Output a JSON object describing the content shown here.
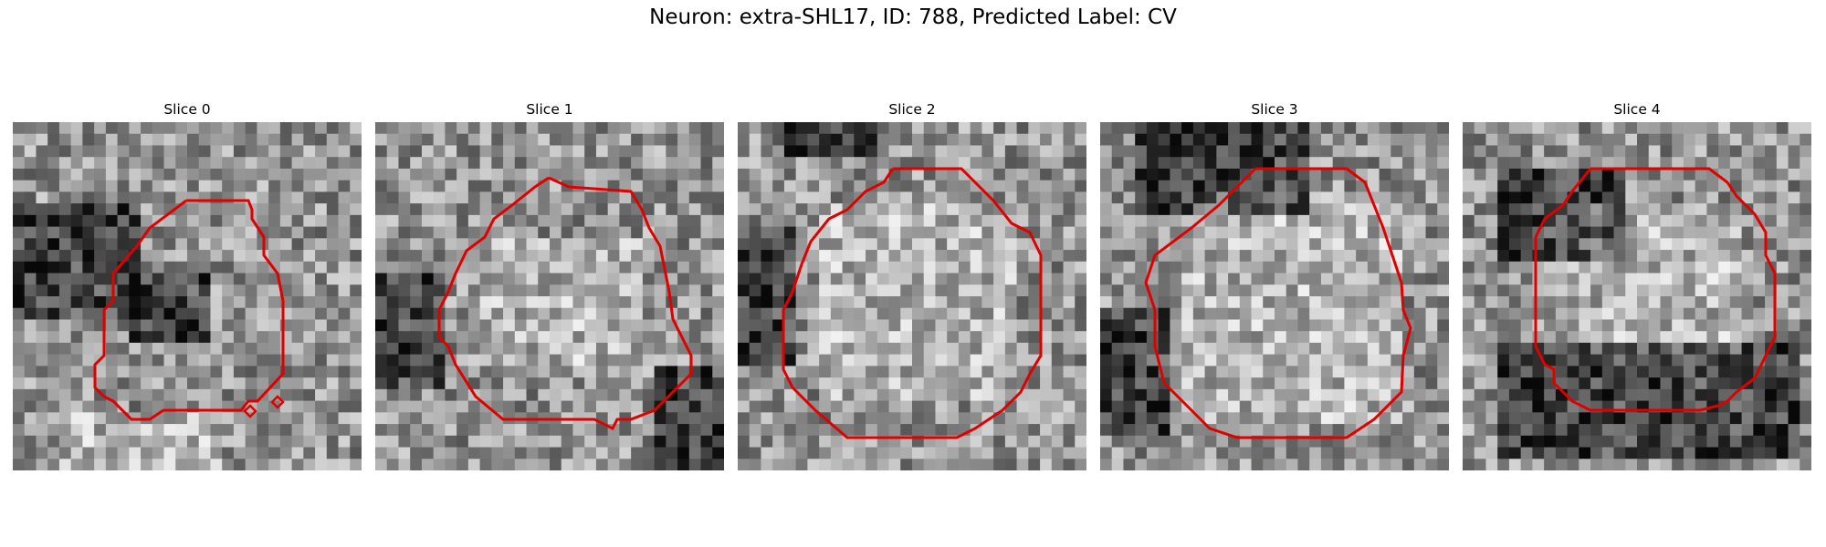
{
  "figure": {
    "suptitle": "Neuron: extra-SHL17, ID: 788, Predicted Label: CV",
    "contour_color": "#e00000",
    "colormap": "grayscale"
  },
  "panels": [
    {
      "title": "Slice 0",
      "seed": 11,
      "dark_zones": [
        [
          0.35,
          0.45,
          0.55,
          0.62
        ],
        [
          0.0,
          0.22,
          0.35,
          0.55
        ]
      ],
      "bright_zones": [
        [
          0.15,
          0.85,
          0.6,
          1.0
        ]
      ]
    },
    {
      "title": "Slice 1",
      "seed": 23,
      "dark_zones": [
        [
          0.0,
          0.45,
          0.2,
          0.75
        ],
        [
          0.8,
          0.7,
          1.0,
          1.0
        ]
      ],
      "bright_zones": [
        [
          0.3,
          0.35,
          0.75,
          0.7
        ]
      ]
    },
    {
      "title": "Slice 2",
      "seed": 37,
      "dark_zones": [
        [
          0.15,
          0.0,
          0.4,
          0.1
        ],
        [
          0.0,
          0.3,
          0.15,
          0.7
        ]
      ],
      "bright_zones": [
        [
          0.25,
          0.25,
          0.8,
          0.8
        ]
      ]
    },
    {
      "title": "Slice 3",
      "seed": 53,
      "dark_zones": [
        [
          0.1,
          0.0,
          0.6,
          0.25
        ],
        [
          0.0,
          0.55,
          0.2,
          0.9
        ]
      ],
      "bright_zones": [
        [
          0.25,
          0.2,
          0.85,
          0.85
        ]
      ]
    },
    {
      "title": "Slice 4",
      "seed": 71,
      "dark_zones": [
        [
          0.1,
          0.15,
          0.45,
          0.4
        ],
        [
          0.1,
          0.65,
          0.95,
          0.95
        ]
      ],
      "bright_zones": [
        [
          0.3,
          0.25,
          0.8,
          0.7
        ]
      ]
    }
  ]
}
